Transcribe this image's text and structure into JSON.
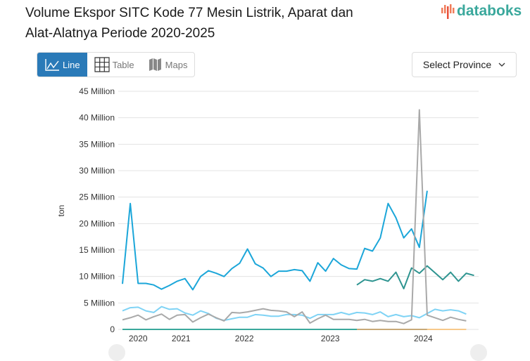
{
  "header": {
    "title": "Volume Ekspor SITC Kode 77 Mesin Listrik, Aparat dan Alat-Alatnya Periode 2020-2025",
    "logo_text": "databoks"
  },
  "view_tabs": [
    {
      "label": "Line",
      "icon": "line-chart-icon",
      "active": true
    },
    {
      "label": "Table",
      "icon": "table-icon",
      "active": false
    },
    {
      "label": "Maps",
      "icon": "map-icon",
      "active": false
    }
  ],
  "province_select": {
    "label": "Select Province"
  },
  "chart_data": {
    "type": "line",
    "ylabel": "ton",
    "ylim": [
      0,
      45000000
    ],
    "yticks": [
      "0",
      "5 Million",
      "10 Million",
      "15 Million",
      "20 Million",
      "25 Million",
      "30 Million",
      "35 Million",
      "40 Million",
      "45 Million"
    ],
    "xticks": [
      {
        "label": "2020",
        "at": 2
      },
      {
        "label": "2021",
        "at": 7.5
      },
      {
        "label": "2022",
        "at": 15.6
      },
      {
        "label": "2023",
        "at": 26.6
      },
      {
        "label": "2024",
        "at": 38.5
      }
    ],
    "grid": true,
    "series": [
      {
        "color": "#1ba6d9",
        "start": 0,
        "values": [
          8.6,
          23.8,
          8.7,
          8.7,
          8.4,
          7.6,
          8.3,
          9.1,
          9.6,
          7.5,
          10,
          11.1,
          10.6,
          10,
          11.5,
          12.5,
          15.2,
          12.4,
          11.6,
          10,
          11,
          11,
          11.3,
          11.1,
          9.1,
          12.6,
          11,
          13.4,
          12.2,
          11.5,
          11.4,
          15.3,
          14.8,
          17.3,
          23.8,
          21.1,
          17.3,
          19,
          15.5,
          26.2
        ]
      },
      {
        "color": "#2e9490",
        "start": 30,
        "values": [
          8.4,
          9.4,
          9.1,
          9.6,
          9.1,
          10.8,
          7.7,
          11.6,
          10.6,
          12,
          10.7,
          9.4,
          10.8,
          9.1,
          10.6,
          10.2
        ]
      },
      {
        "color": "#7fd3f5",
        "start": 0,
        "values": [
          3.5,
          4.1,
          4.2,
          3.5,
          3.2,
          4.3,
          3.8,
          3.9,
          3.1,
          2.7,
          3.5,
          3,
          2.1,
          1.7,
          2,
          2.3,
          2.3,
          2.8,
          2.7,
          2.5,
          2.5,
          2.8,
          2.8,
          2.7,
          2.1,
          2.8,
          2.8,
          2.8,
          3.2,
          2.8,
          3.2,
          3.1,
          2.8,
          3.3,
          2.4,
          2.8,
          2.4,
          2.6,
          2.2,
          3,
          3.8,
          3.5,
          3.7,
          3.5,
          2.9
        ]
      },
      {
        "color": "#a9a9a9",
        "start": 0,
        "values": [
          1.8,
          2.2,
          2.7,
          1.8,
          2.4,
          2.9,
          1.9,
          2.7,
          2.8,
          1.4,
          2.2,
          2.9,
          2.2,
          1.6,
          3.2,
          3.1,
          3.3,
          3.6,
          3.9,
          3.6,
          3.5,
          3.3,
          2.4,
          3.3,
          1.2,
          2,
          2.7,
          1.9,
          1.9,
          1.9,
          1.7,
          1.9,
          1.5,
          1.7,
          1.5,
          1.5,
          1.1,
          1.8,
          41.5,
          2.7,
          2.2,
          1.7,
          2.3,
          1.9,
          1.6
        ]
      },
      {
        "color": "#3aa89c",
        "start": 0,
        "values": [
          0,
          0,
          0,
          0,
          0,
          0,
          0,
          0,
          0,
          0,
          0,
          0,
          0,
          0,
          0,
          0,
          0,
          0,
          0,
          0,
          0,
          0,
          0,
          0,
          0,
          0,
          0,
          0,
          0,
          0,
          0
        ]
      },
      {
        "color": "#c8a877",
        "start": 30,
        "values": [
          0,
          0,
          0,
          0,
          0,
          0,
          0,
          0,
          0,
          0
        ]
      },
      {
        "color": "#f7c98a",
        "start": 39,
        "values": [
          0,
          0,
          0,
          0,
          0,
          0
        ]
      }
    ]
  }
}
